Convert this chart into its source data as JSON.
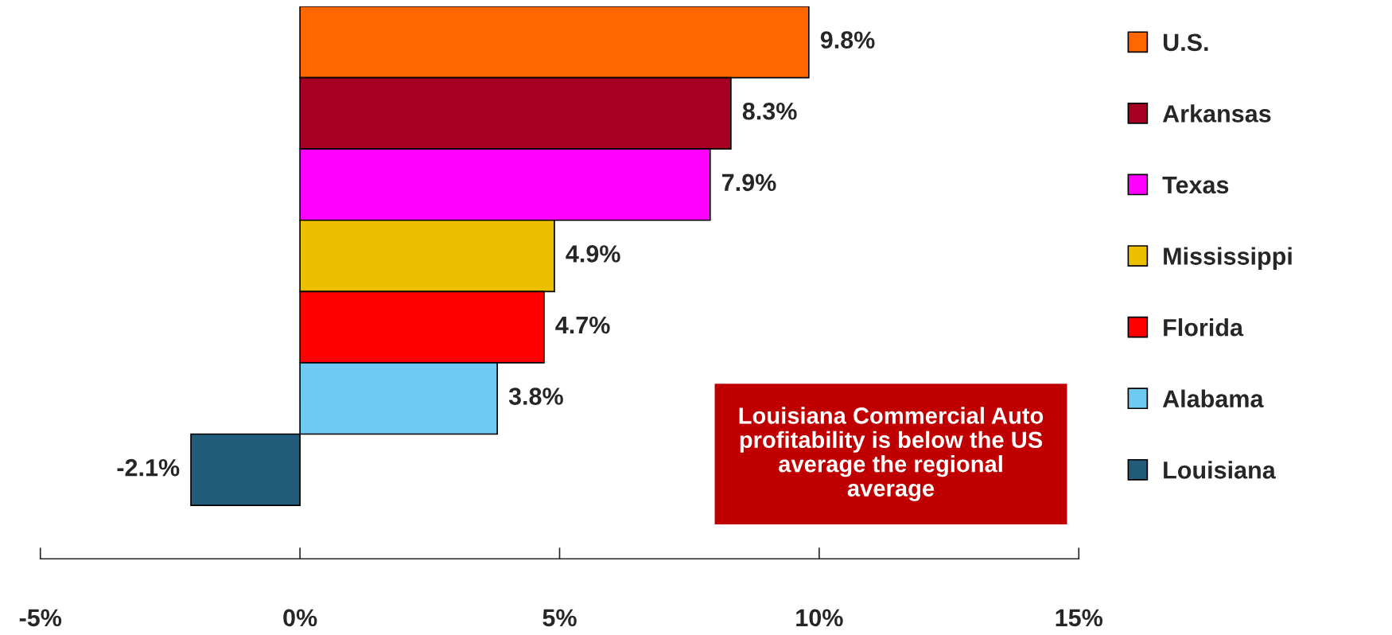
{
  "chart_data": {
    "type": "bar",
    "orientation": "horizontal",
    "categories": [
      "U.S.",
      "Arkansas",
      "Texas",
      "Mississippi",
      "Florida",
      "Alabama",
      "Louisiana"
    ],
    "values": [
      9.8,
      8.3,
      7.9,
      4.9,
      4.7,
      3.8,
      -2.1
    ],
    "colors": [
      "#ff6600",
      "#a50021",
      "#ff00ff",
      "#ecc000",
      "#ff0000",
      "#6ecaf0",
      "#235c7a"
    ],
    "value_labels": [
      "9.8%",
      "8.3%",
      "7.9%",
      "4.9%",
      "4.7%",
      "3.8%",
      "-2.1%"
    ],
    "xlim": [
      -5,
      15
    ],
    "xticks": [
      {
        "value": -5,
        "label": "-5%"
      },
      {
        "value": 0,
        "label": "0%"
      },
      {
        "value": 5,
        "label": "5%"
      },
      {
        "value": 10,
        "label": "10%"
      },
      {
        "value": 15,
        "label": "15%"
      }
    ],
    "grid": false,
    "annotations": [
      "Louisiana Commercial Auto profitability is below the US average the regional average"
    ]
  }
}
